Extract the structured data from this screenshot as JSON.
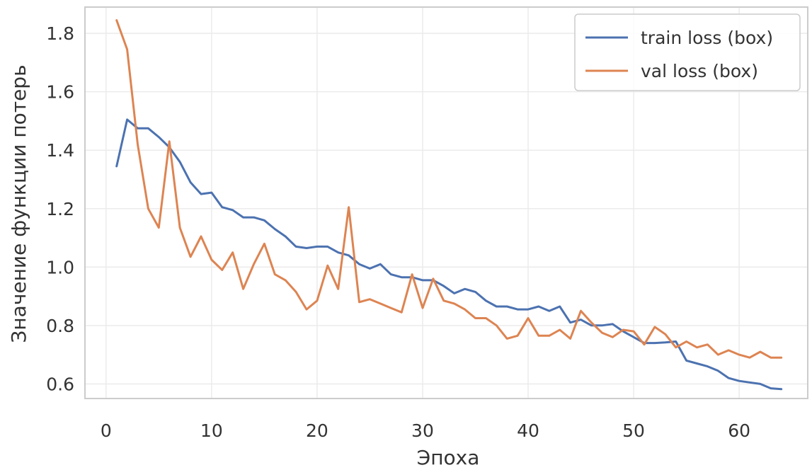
{
  "colors": {
    "train": "#4c72b0",
    "val": "#dd8452",
    "grid": "#ebebeb",
    "frame": "#cccccc",
    "text": "#333333"
  },
  "chart_data": {
    "type": "line",
    "title": "",
    "xlabel": "Эпоха",
    "ylabel": "Значение функции потерь",
    "xlim": [
      -2,
      66.5
    ],
    "ylim": [
      0.55,
      1.89
    ],
    "xticks": [
      0,
      10,
      20,
      30,
      40,
      50,
      60
    ],
    "xtick_labels": [
      "0",
      "10",
      "20",
      "30",
      "40",
      "50",
      "60"
    ],
    "yticks": [
      0.6,
      0.8,
      1.0,
      1.2,
      1.4,
      1.6,
      1.8
    ],
    "ytick_labels": [
      "0.6",
      "0.8",
      "1.0",
      "1.2",
      "1.4",
      "1.6",
      "1.8"
    ],
    "grid": true,
    "legend_position": "top-right",
    "x": [
      1,
      2,
      3,
      4,
      5,
      6,
      7,
      8,
      9,
      10,
      11,
      12,
      13,
      14,
      15,
      16,
      17,
      18,
      19,
      20,
      21,
      22,
      23,
      24,
      25,
      26,
      27,
      28,
      29,
      30,
      31,
      32,
      33,
      34,
      35,
      36,
      37,
      38,
      39,
      40,
      41,
      42,
      43,
      44,
      45,
      46,
      47,
      48,
      49,
      50,
      51,
      52,
      53,
      54,
      55,
      56,
      57,
      58,
      59,
      60,
      61,
      62,
      63,
      64
    ],
    "series": [
      {
        "name": "train loss (box)",
        "color_key": "train",
        "values": [
          1.345,
          1.505,
          1.475,
          1.475,
          1.445,
          1.41,
          1.36,
          1.29,
          1.25,
          1.255,
          1.205,
          1.195,
          1.17,
          1.17,
          1.16,
          1.13,
          1.105,
          1.07,
          1.065,
          1.07,
          1.07,
          1.05,
          1.04,
          1.01,
          0.995,
          1.01,
          0.975,
          0.965,
          0.965,
          0.955,
          0.955,
          0.935,
          0.91,
          0.925,
          0.915,
          0.885,
          0.865,
          0.865,
          0.855,
          0.855,
          0.865,
          0.85,
          0.865,
          0.81,
          0.82,
          0.8,
          0.8,
          0.805,
          0.78,
          0.76,
          0.74,
          0.74,
          0.742,
          0.745,
          0.68,
          0.67,
          0.66,
          0.645,
          0.62,
          0.61,
          0.605,
          0.6,
          0.585,
          0.582
        ]
      },
      {
        "name": "val loss (box)",
        "color_key": "val",
        "values": [
          1.845,
          1.745,
          1.42,
          1.2,
          1.135,
          1.43,
          1.135,
          1.035,
          1.105,
          1.025,
          0.99,
          1.05,
          0.925,
          1.01,
          1.08,
          0.975,
          0.955,
          0.915,
          0.855,
          0.885,
          1.005,
          0.925,
          1.205,
          0.88,
          0.89,
          0.875,
          0.86,
          0.845,
          0.975,
          0.86,
          0.96,
          0.885,
          0.875,
          0.855,
          0.825,
          0.825,
          0.8,
          0.755,
          0.765,
          0.825,
          0.765,
          0.765,
          0.785,
          0.755,
          0.85,
          0.81,
          0.775,
          0.76,
          0.785,
          0.78,
          0.735,
          0.795,
          0.77,
          0.725,
          0.745,
          0.725,
          0.735,
          0.7,
          0.715,
          0.7,
          0.69,
          0.71,
          0.69,
          0.69
        ]
      }
    ]
  }
}
